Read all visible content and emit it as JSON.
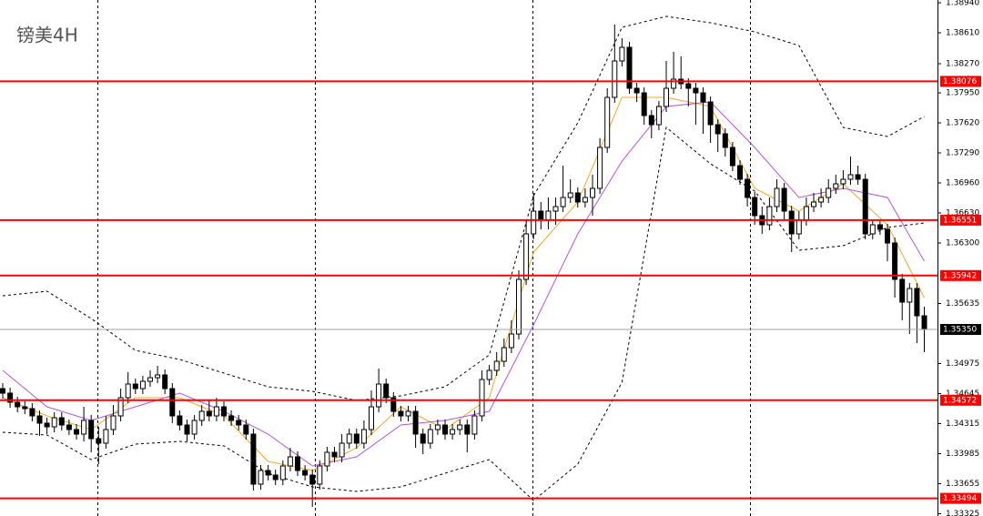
{
  "chart_data": {
    "type": "candlestick",
    "title": "镑美4H",
    "ylim": [
      1.333,
      1.3897
    ],
    "yticks": [
      {
        "value": 1.3894,
        "label": "1.38940"
      },
      {
        "value": 1.3861,
        "label": "1.38610"
      },
      {
        "value": 1.3827,
        "label": "1.38270"
      },
      {
        "value": 1.3795,
        "label": "1.37950"
      },
      {
        "value": 1.3762,
        "label": "1.37620"
      },
      {
        "value": 1.3729,
        "label": "1.37290"
      },
      {
        "value": 1.3696,
        "label": "1.36960"
      },
      {
        "value": 1.3663,
        "label": "1.36630"
      },
      {
        "value": 1.363,
        "label": "1.36300"
      },
      {
        "value": 1.35635,
        "label": "1.35635"
      },
      {
        "value": 1.34975,
        "label": "1.34975"
      },
      {
        "value": 1.34645,
        "label": "1.34645"
      },
      {
        "value": 1.34315,
        "label": "1.34315"
      },
      {
        "value": 1.33985,
        "label": "1.33985"
      },
      {
        "value": 1.33655,
        "label": "1.33655"
      },
      {
        "value": 1.33325,
        "label": "1.33325"
      }
    ],
    "levels": [
      {
        "value": 1.38076,
        "label": "1.38076"
      },
      {
        "value": 1.36551,
        "label": "1.36551"
      },
      {
        "value": 1.35942,
        "label": "1.35942"
      },
      {
        "value": 1.34572,
        "label": "1.34572"
      },
      {
        "value": 1.33494,
        "label": "1.33494"
      }
    ],
    "level_color": "#ff0000",
    "current_price": {
      "value": 1.3535,
      "label": "1.35350"
    },
    "candles": [
      [
        1.347,
        1.3476,
        1.3459,
        1.3465
      ],
      [
        1.3465,
        1.3471,
        1.3449,
        1.3455
      ],
      [
        1.3455,
        1.3461,
        1.3444,
        1.345
      ],
      [
        1.345,
        1.3456,
        1.3442,
        1.3448
      ],
      [
        1.3448,
        1.3454,
        1.3434,
        1.344
      ],
      [
        1.344,
        1.3446,
        1.3418,
        1.3432
      ],
      [
        1.3432,
        1.3438,
        1.342,
        1.3428
      ],
      [
        1.3428,
        1.3444,
        1.3422,
        1.3438
      ],
      [
        1.3438,
        1.3444,
        1.3424,
        1.343
      ],
      [
        1.343,
        1.3436,
        1.3419,
        1.3425
      ],
      [
        1.3425,
        1.3431,
        1.3414,
        1.342
      ],
      [
        1.342,
        1.345,
        1.3412,
        1.3435
      ],
      [
        1.3435,
        1.3441,
        1.34,
        1.3415
      ],
      [
        1.3415,
        1.3428,
        1.3387,
        1.341
      ],
      [
        1.341,
        1.344,
        1.3404,
        1.3425
      ],
      [
        1.3425,
        1.3452,
        1.3419,
        1.344
      ],
      [
        1.344,
        1.347,
        1.3434,
        1.346
      ],
      [
        1.346,
        1.3488,
        1.3454,
        1.3475
      ],
      [
        1.3475,
        1.3481,
        1.3464,
        1.347
      ],
      [
        1.347,
        1.3484,
        1.3464,
        1.3478
      ],
      [
        1.3478,
        1.349,
        1.3472,
        1.3482
      ],
      [
        1.3482,
        1.3495,
        1.3476,
        1.3485
      ],
      [
        1.3485,
        1.3491,
        1.3464,
        1.347
      ],
      [
        1.347,
        1.3476,
        1.3432,
        1.344
      ],
      [
        1.344,
        1.3446,
        1.3424,
        1.343
      ],
      [
        1.343,
        1.3436,
        1.3412,
        1.342
      ],
      [
        1.342,
        1.3441,
        1.3414,
        1.3435
      ],
      [
        1.3435,
        1.3452,
        1.3429,
        1.3445
      ],
      [
        1.3445,
        1.3458,
        1.3434,
        1.344
      ],
      [
        1.344,
        1.346,
        1.3434,
        1.345
      ],
      [
        1.345,
        1.3456,
        1.3434,
        1.344
      ],
      [
        1.344,
        1.3446,
        1.3429,
        1.3435
      ],
      [
        1.3435,
        1.3441,
        1.3424,
        1.343
      ],
      [
        1.343,
        1.3436,
        1.3414,
        1.342
      ],
      [
        1.342,
        1.3426,
        1.3358,
        1.3365
      ],
      [
        1.3365,
        1.3386,
        1.3359,
        1.338
      ],
      [
        1.338,
        1.3386,
        1.3369,
        1.3375
      ],
      [
        1.3375,
        1.3381,
        1.3364,
        1.337
      ],
      [
        1.337,
        1.3391,
        1.3364,
        1.3385
      ],
      [
        1.3385,
        1.3405,
        1.3379,
        1.3395
      ],
      [
        1.3395,
        1.3401,
        1.3374,
        1.338
      ],
      [
        1.338,
        1.3386,
        1.3369,
        1.3375
      ],
      [
        1.3375,
        1.3381,
        1.334,
        1.3365
      ],
      [
        1.3365,
        1.3391,
        1.3359,
        1.3385
      ],
      [
        1.3385,
        1.3406,
        1.3379,
        1.34
      ],
      [
        1.34,
        1.3406,
        1.3389,
        1.3395
      ],
      [
        1.3395,
        1.342,
        1.3389,
        1.341
      ],
      [
        1.341,
        1.3426,
        1.3404,
        1.342
      ],
      [
        1.342,
        1.3426,
        1.3404,
        1.341
      ],
      [
        1.341,
        1.3435,
        1.3404,
        1.3425
      ],
      [
        1.3425,
        1.3468,
        1.3419,
        1.345
      ],
      [
        1.345,
        1.3492,
        1.3444,
        1.3475
      ],
      [
        1.3475,
        1.3481,
        1.3454,
        1.346
      ],
      [
        1.346,
        1.3466,
        1.3439,
        1.3445
      ],
      [
        1.3445,
        1.3451,
        1.3434,
        1.344
      ],
      [
        1.344,
        1.3451,
        1.3434,
        1.3445
      ],
      [
        1.3445,
        1.3451,
        1.3405,
        1.342
      ],
      [
        1.342,
        1.3426,
        1.3398,
        1.341
      ],
      [
        1.341,
        1.3431,
        1.3404,
        1.3425
      ],
      [
        1.3425,
        1.3436,
        1.3419,
        1.343
      ],
      [
        1.343,
        1.3436,
        1.3414,
        1.342
      ],
      [
        1.342,
        1.3431,
        1.3414,
        1.3425
      ],
      [
        1.3425,
        1.3436,
        1.3419,
        1.343
      ],
      [
        1.343,
        1.3436,
        1.34,
        1.342
      ],
      [
        1.342,
        1.3446,
        1.3414,
        1.344
      ],
      [
        1.344,
        1.349,
        1.3434,
        1.348
      ],
      [
        1.348,
        1.3496,
        1.3474,
        1.349
      ],
      [
        1.349,
        1.351,
        1.3484,
        1.35
      ],
      [
        1.35,
        1.3525,
        1.3494,
        1.3515
      ],
      [
        1.3515,
        1.3545,
        1.3509,
        1.353
      ],
      [
        1.353,
        1.36,
        1.3524,
        1.359
      ],
      [
        1.359,
        1.3655,
        1.3584,
        1.364
      ],
      [
        1.364,
        1.3685,
        1.3634,
        1.3665
      ],
      [
        1.3665,
        1.3675,
        1.3645,
        1.3655
      ],
      [
        1.3655,
        1.368,
        1.3645,
        1.3665
      ],
      [
        1.3665,
        1.368,
        1.365,
        1.367
      ],
      [
        1.367,
        1.3715,
        1.3664,
        1.368
      ],
      [
        1.368,
        1.37,
        1.3674,
        1.3685
      ],
      [
        1.3685,
        1.3691,
        1.3669,
        1.3675
      ],
      [
        1.3675,
        1.369,
        1.3669,
        1.368
      ],
      [
        1.368,
        1.3705,
        1.366,
        1.369
      ],
      [
        1.369,
        1.3745,
        1.3684,
        1.3735
      ],
      [
        1.3735,
        1.38,
        1.3729,
        1.379
      ],
      [
        1.379,
        1.387,
        1.3784,
        1.383
      ],
      [
        1.383,
        1.3855,
        1.3824,
        1.3845
      ],
      [
        1.3845,
        1.3851,
        1.3794,
        1.38
      ],
      [
        1.38,
        1.3806,
        1.3785,
        1.3795
      ],
      [
        1.3795,
        1.3801,
        1.376,
        1.377
      ],
      [
        1.377,
        1.3776,
        1.3745,
        1.376
      ],
      [
        1.376,
        1.3786,
        1.3754,
        1.378
      ],
      [
        1.378,
        1.383,
        1.3774,
        1.38
      ],
      [
        1.38,
        1.384,
        1.3794,
        1.381
      ],
      [
        1.381,
        1.3835,
        1.3799,
        1.3805
      ],
      [
        1.3805,
        1.3811,
        1.378,
        1.38
      ],
      [
        1.38,
        1.3806,
        1.376,
        1.3795
      ],
      [
        1.3795,
        1.3801,
        1.375,
        1.3785
      ],
      [
        1.3785,
        1.3791,
        1.374,
        1.376
      ],
      [
        1.376,
        1.3766,
        1.373,
        1.375
      ],
      [
        1.375,
        1.3756,
        1.3725,
        1.3735
      ],
      [
        1.3735,
        1.3741,
        1.3709,
        1.3715
      ],
      [
        1.3715,
        1.3721,
        1.3694,
        1.37
      ],
      [
        1.37,
        1.3706,
        1.367,
        1.368
      ],
      [
        1.368,
        1.3686,
        1.365,
        1.366
      ],
      [
        1.366,
        1.367,
        1.364,
        1.365
      ],
      [
        1.365,
        1.368,
        1.3644,
        1.367
      ],
      [
        1.367,
        1.37,
        1.3664,
        1.369
      ],
      [
        1.369,
        1.3696,
        1.3655,
        1.3665
      ],
      [
        1.3665,
        1.3671,
        1.362,
        1.364
      ],
      [
        1.364,
        1.3665,
        1.3634,
        1.3655
      ],
      [
        1.3655,
        1.368,
        1.3649,
        1.367
      ],
      [
        1.367,
        1.3685,
        1.3664,
        1.3675
      ],
      [
        1.3675,
        1.369,
        1.3669,
        1.368
      ],
      [
        1.368,
        1.37,
        1.3674,
        1.369
      ],
      [
        1.369,
        1.3705,
        1.3684,
        1.3695
      ],
      [
        1.3695,
        1.371,
        1.3689,
        1.37
      ],
      [
        1.37,
        1.3725,
        1.3694,
        1.3705
      ],
      [
        1.3705,
        1.3715,
        1.3694,
        1.37
      ],
      [
        1.37,
        1.3706,
        1.3634,
        1.364
      ],
      [
        1.364,
        1.3656,
        1.3634,
        1.365
      ],
      [
        1.365,
        1.3656,
        1.3639,
        1.3645
      ],
      [
        1.3645,
        1.3651,
        1.361,
        1.363
      ],
      [
        1.363,
        1.3636,
        1.357,
        1.359
      ],
      [
        1.359,
        1.3596,
        1.3545,
        1.3565
      ],
      [
        1.3565,
        1.3586,
        1.353,
        1.358
      ],
      [
        1.358,
        1.3586,
        1.352,
        1.355
      ],
      [
        1.355,
        1.356,
        1.351,
        1.3535
      ]
    ],
    "lines": {
      "x": [
        0,
        6,
        12,
        18,
        24,
        30,
        36,
        42,
        48,
        54,
        60,
        66,
        72,
        78,
        84,
        90,
        96,
        102,
        108,
        114,
        120,
        125
      ],
      "series": [
        {
          "color": "#000000",
          "dashed": true,
          "values": [
            1.3572,
            1.3577,
            1.3547,
            1.3512,
            1.3502,
            1.3487,
            1.3472,
            1.3467,
            1.3457,
            1.3462,
            1.3472,
            1.3507,
            1.3682,
            1.3762,
            1.3867,
            1.3879,
            1.3872,
            1.3862,
            1.3847,
            1.3757,
            1.3747,
            1.3769
          ]
        },
        {
          "color": "#000000",
          "dashed": true,
          "values": [
            1.3422,
            1.3419,
            1.3392,
            1.3409,
            1.3412,
            1.3407,
            1.3377,
            1.3362,
            1.3357,
            1.3362,
            1.3377,
            1.3392,
            1.3347,
            1.3387,
            1.3477,
            1.3757,
            1.3717,
            1.3687,
            1.3622,
            1.3627,
            1.3647,
            1.3652
          ]
        },
        {
          "color": "#f5a623",
          "dashed": false,
          "values": [
            1.346,
            1.344,
            1.3425,
            1.346,
            1.346,
            1.344,
            1.339,
            1.338,
            1.3405,
            1.345,
            1.3425,
            1.346,
            1.362,
            1.3675,
            1.379,
            1.379,
            1.378,
            1.369,
            1.3665,
            1.3695,
            1.365,
            1.357
          ]
        },
        {
          "color": "#b455e0",
          "dashed": false,
          "values": [
            1.349,
            1.345,
            1.3435,
            1.345,
            1.3465,
            1.3445,
            1.342,
            1.3385,
            1.3395,
            1.343,
            1.3435,
            1.3445,
            1.354,
            1.364,
            1.372,
            1.378,
            1.3785,
            1.3735,
            1.368,
            1.369,
            1.368,
            1.361
          ]
        }
      ]
    }
  }
}
